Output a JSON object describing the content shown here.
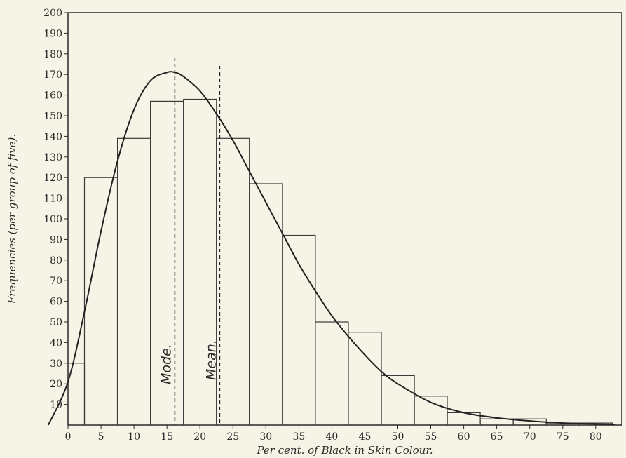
{
  "chart_data": {
    "type": "bar",
    "title": "",
    "xlabel": "Per cent. of Black in Skin Colour.",
    "ylabel": "Frequencies (per group of five).",
    "xlim": [
      0,
      83
    ],
    "ylim": [
      0,
      200
    ],
    "x_ticks": [
      0,
      5,
      10,
      15,
      20,
      25,
      30,
      35,
      40,
      45,
      50,
      55,
      60,
      65,
      70,
      75,
      80
    ],
    "y_ticks": [
      10,
      20,
      30,
      40,
      50,
      60,
      70,
      80,
      90,
      100,
      110,
      120,
      130,
      140,
      150,
      160,
      170,
      180,
      190,
      200
    ],
    "bin_width": 5,
    "bars": [
      {
        "x": 0,
        "value": 30
      },
      {
        "x": 5,
        "value": 120
      },
      {
        "x": 10,
        "value": 139
      },
      {
        "x": 15,
        "value": 157
      },
      {
        "x": 20,
        "value": 158
      },
      {
        "x": 25,
        "value": 139
      },
      {
        "x": 30,
        "value": 117
      },
      {
        "x": 35,
        "value": 92
      },
      {
        "x": 40,
        "value": 50
      },
      {
        "x": 45,
        "value": 45
      },
      {
        "x": 50,
        "value": 24
      },
      {
        "x": 55,
        "value": 14
      },
      {
        "x": 60,
        "value": 6
      },
      {
        "x": 65,
        "value": 3
      },
      {
        "x": 70,
        "value": 3
      },
      {
        "x": 75,
        "value": 1
      },
      {
        "x": 80,
        "value": 1
      }
    ],
    "fitted_curve": {
      "x": [
        -3,
        0,
        2.5,
        5,
        7.5,
        10,
        12.5,
        15,
        16.2,
        17.5,
        20,
        22.5,
        25,
        27.5,
        30,
        32.5,
        35,
        37.5,
        40,
        42.5,
        45,
        47.5,
        50,
        55,
        60,
        65,
        70,
        75,
        80,
        83
      ],
      "y": [
        0,
        21,
        55,
        94,
        128,
        153,
        167,
        171,
        171,
        169,
        162,
        151,
        138,
        123,
        108,
        93,
        78,
        65,
        53,
        43,
        34,
        26,
        20,
        11,
        6,
        3.5,
        2,
        1,
        0.5,
        0.3
      ]
    },
    "reference_lines": [
      {
        "label": "Mode.",
        "x": 16.2
      },
      {
        "label": "Mean.",
        "x": 23
      }
    ],
    "grid": false,
    "legend": "none"
  }
}
